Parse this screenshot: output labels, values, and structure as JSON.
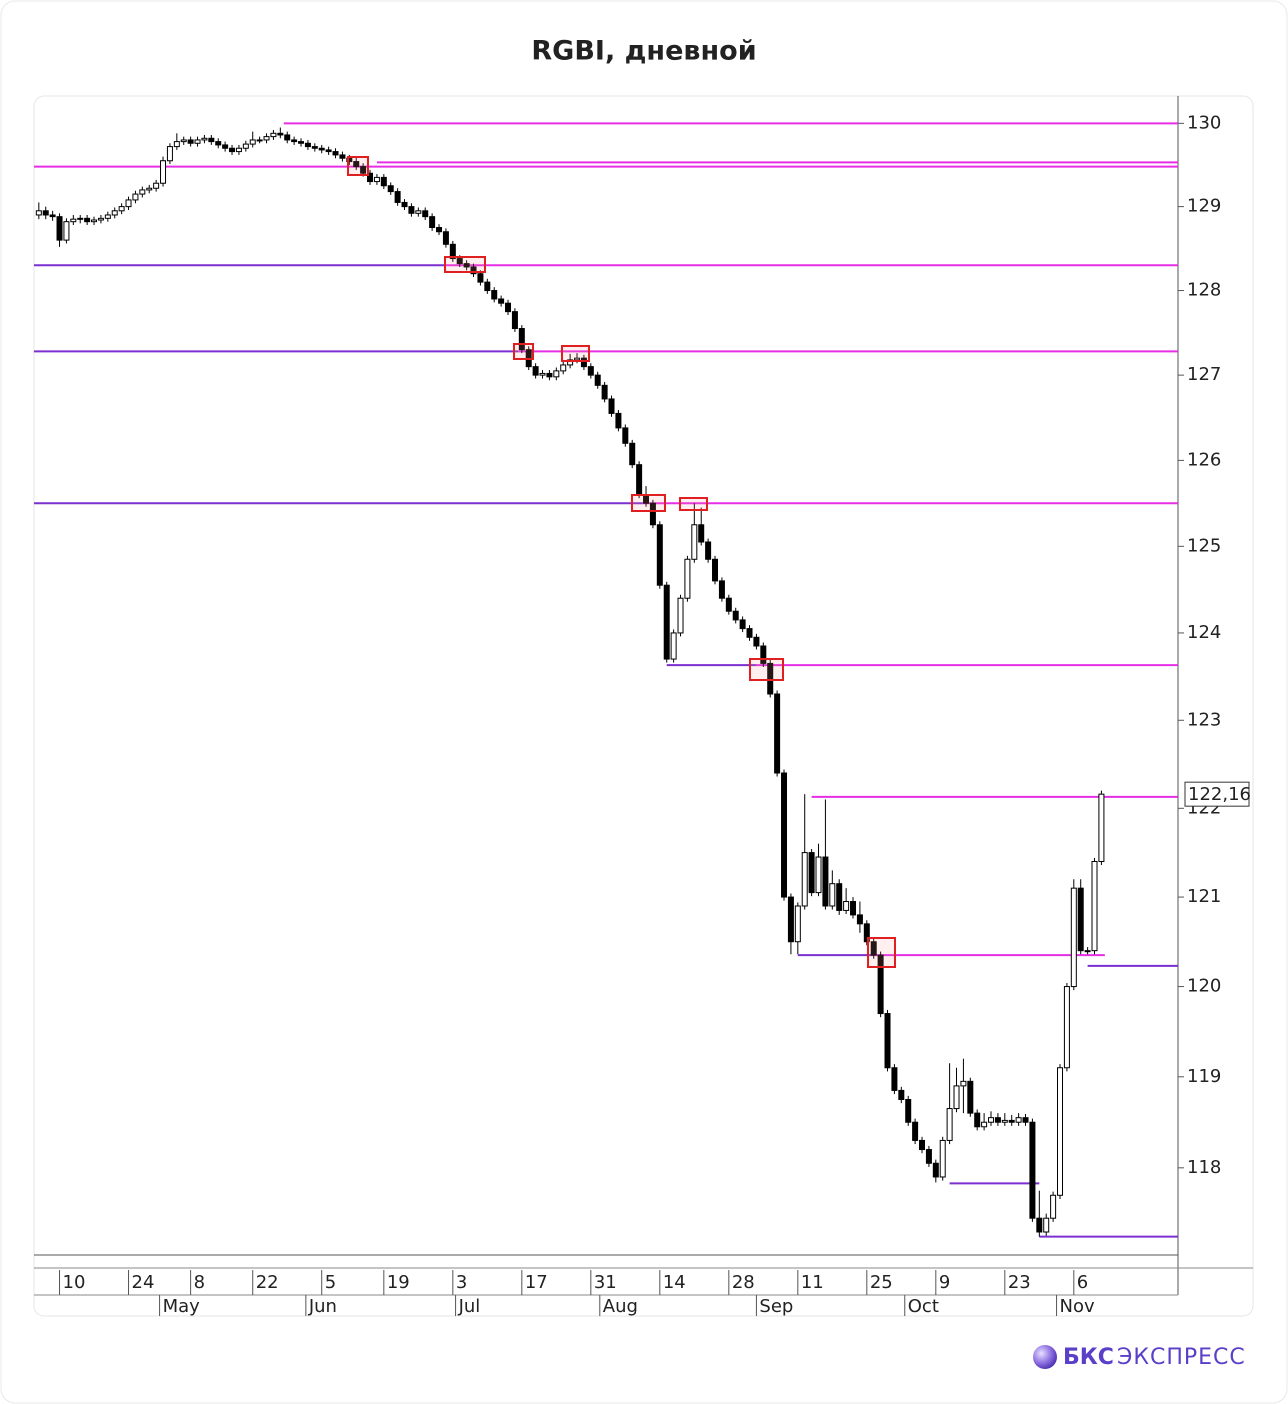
{
  "chart_data": {
    "type": "candlestick",
    "title": "RGBI, дневной",
    "log_scale": true,
    "ylim": [
      117.05,
      130.33
    ],
    "yticks": [
      118,
      119,
      120,
      121,
      122,
      123,
      124,
      125,
      126,
      127,
      128,
      129,
      130
    ],
    "xlim": [
      -0.7,
      165.1
    ],
    "xticks": [
      {
        "value": 3,
        "label": "10"
      },
      {
        "value": 13,
        "label": "24"
      },
      {
        "value": 22,
        "label": "8"
      },
      {
        "value": 31,
        "label": "22"
      },
      {
        "value": 41,
        "label": "5"
      },
      {
        "value": 50,
        "label": "19"
      },
      {
        "value": 60,
        "label": "3"
      },
      {
        "value": 70,
        "label": "17"
      },
      {
        "value": 80,
        "label": "31"
      },
      {
        "value": 90,
        "label": "14"
      },
      {
        "value": 100,
        "label": "28"
      },
      {
        "value": 110,
        "label": "11"
      },
      {
        "value": 120,
        "label": "25"
      },
      {
        "value": 130,
        "label": "9"
      },
      {
        "value": 140,
        "label": "23"
      },
      {
        "value": 150,
        "label": "6"
      }
    ],
    "month_ticks": [
      {
        "value": 17.5,
        "label": "May"
      },
      {
        "value": 38.7,
        "label": "Jun"
      },
      {
        "value": 60.4,
        "label": "Jul"
      },
      {
        "value": 81.3,
        "label": "Aug"
      },
      {
        "value": 104,
        "label": "Sep"
      },
      {
        "value": 125.5,
        "label": "Oct"
      },
      {
        "value": 147.5,
        "label": "Nov"
      }
    ],
    "up_color": "#ffffff",
    "down_color": "#000000",
    "open": [
      128.9,
      128.95,
      128.9,
      128.88,
      128.6,
      128.82,
      128.85,
      128.86,
      128.82,
      128.84,
      128.86,
      128.9,
      128.95,
      129.0,
      129.08,
      129.15,
      129.2,
      129.22,
      129.28,
      129.55,
      129.72,
      129.78,
      129.8,
      129.76,
      129.8,
      129.82,
      129.78,
      129.74,
      129.7,
      129.66,
      129.7,
      129.75,
      129.8,
      129.8,
      129.84,
      129.88,
      129.86,
      129.8,
      129.78,
      129.76,
      129.72,
      129.7,
      129.68,
      129.66,
      129.62,
      129.58,
      129.54,
      129.48,
      129.4,
      129.3,
      129.35,
      129.25,
      129.18,
      129.05,
      129.0,
      128.92,
      128.95,
      128.88,
      128.75,
      128.7,
      128.55,
      128.38,
      128.32,
      128.28,
      128.2,
      128.1,
      128.0,
      127.9,
      127.85,
      127.75,
      127.55,
      127.3,
      127.1,
      127.0,
      127.02,
      126.98,
      127.05,
      127.12,
      127.18,
      127.2,
      127.1,
      127.0,
      126.88,
      126.72,
      126.55,
      126.38,
      126.2,
      125.95,
      125.6,
      125.5,
      125.25,
      124.55,
      123.7,
      124.0,
      124.4,
      124.85,
      125.25,
      125.05,
      124.85,
      124.6,
      124.4,
      124.25,
      124.15,
      124.05,
      123.95,
      123.85,
      123.65,
      123.3,
      122.4,
      121.0,
      120.5,
      120.9,
      121.5,
      121.05,
      121.45,
      120.9,
      121.15,
      120.85,
      120.95,
      120.8,
      120.7,
      120.5,
      120.35,
      119.7,
      119.1,
      118.85,
      118.75,
      118.5,
      118.3,
      118.2,
      118.05,
      117.9,
      118.3,
      118.65,
      118.9,
      118.95,
      118.6,
      118.45,
      118.5,
      118.55,
      118.5,
      118.52,
      118.5,
      118.55,
      118.5,
      117.45,
      117.3,
      117.45,
      117.7,
      119.1,
      120.0,
      121.1,
      120.4,
      120.4,
      121.4
    ],
    "high": [
      129.05,
      129.0,
      128.95,
      128.92,
      128.86,
      128.9,
      128.9,
      128.9,
      128.88,
      128.9,
      128.94,
      128.99,
      129.04,
      129.12,
      129.19,
      129.24,
      129.26,
      129.32,
      129.6,
      129.76,
      129.88,
      129.84,
      129.84,
      129.84,
      129.86,
      129.86,
      129.82,
      129.78,
      129.74,
      129.74,
      129.79,
      129.9,
      129.84,
      129.88,
      129.92,
      129.95,
      129.9,
      129.84,
      129.82,
      129.8,
      129.76,
      129.74,
      129.72,
      129.7,
      129.66,
      129.62,
      129.6,
      129.52,
      129.44,
      129.39,
      129.39,
      129.29,
      129.22,
      129.09,
      129.04,
      128.99,
      128.99,
      128.92,
      128.79,
      128.74,
      128.59,
      128.42,
      128.36,
      128.32,
      128.24,
      128.14,
      128.04,
      127.94,
      127.89,
      127.79,
      127.59,
      127.34,
      127.14,
      127.06,
      127.06,
      127.09,
      127.16,
      127.25,
      127.26,
      127.24,
      127.14,
      127.04,
      126.92,
      126.76,
      126.59,
      126.42,
      126.24,
      125.99,
      125.7,
      125.54,
      125.29,
      124.59,
      124.04,
      124.44,
      124.89,
      125.5,
      125.45,
      125.09,
      124.89,
      124.64,
      124.44,
      124.29,
      124.19,
      124.09,
      123.99,
      123.89,
      123.69,
      123.34,
      122.44,
      121.04,
      120.94,
      122.16,
      121.54,
      121.6,
      122.1,
      121.3,
      121.2,
      121.1,
      121.0,
      120.95,
      120.74,
      120.54,
      120.39,
      119.74,
      119.14,
      118.89,
      118.79,
      118.54,
      118.34,
      118.24,
      118.09,
      118.34,
      119.15,
      119.1,
      119.2,
      118.99,
      118.64,
      118.6,
      118.62,
      118.6,
      118.6,
      118.58,
      118.6,
      118.59,
      118.54,
      117.75,
      117.5,
      117.74,
      119.14,
      120.04,
      121.2,
      121.2,
      120.44,
      121.44,
      122.2
    ],
    "low": [
      128.85,
      128.85,
      128.83,
      128.52,
      128.56,
      128.78,
      128.8,
      128.78,
      128.78,
      128.8,
      128.82,
      128.86,
      128.91,
      128.96,
      129.04,
      129.11,
      129.16,
      129.18,
      129.24,
      129.51,
      129.68,
      129.74,
      129.72,
      129.72,
      129.76,
      129.74,
      129.7,
      129.66,
      129.62,
      129.62,
      129.66,
      129.71,
      129.76,
      129.76,
      129.8,
      129.82,
      129.76,
      129.74,
      129.72,
      129.68,
      129.66,
      129.64,
      129.62,
      129.58,
      129.54,
      129.5,
      129.44,
      129.36,
      129.26,
      129.26,
      129.21,
      129.14,
      129.01,
      128.96,
      128.88,
      128.88,
      128.84,
      128.71,
      128.66,
      128.51,
      128.34,
      128.28,
      128.24,
      128.16,
      128.06,
      127.96,
      127.86,
      127.81,
      127.71,
      127.51,
      127.26,
      127.06,
      126.96,
      126.96,
      126.94,
      126.94,
      127.01,
      127.08,
      127.14,
      127.06,
      126.96,
      126.84,
      126.68,
      126.51,
      126.34,
      126.16,
      125.91,
      125.56,
      125.46,
      125.21,
      124.51,
      123.66,
      123.66,
      123.96,
      124.36,
      124.81,
      125.01,
      124.81,
      124.56,
      124.36,
      124.21,
      124.11,
      124.01,
      123.91,
      123.81,
      123.61,
      123.26,
      122.36,
      120.96,
      120.36,
      120.36,
      120.86,
      121.01,
      121.01,
      120.86,
      120.86,
      120.8,
      120.81,
      120.76,
      120.6,
      120.46,
      120.31,
      119.66,
      119.06,
      118.81,
      118.71,
      118.46,
      118.26,
      118.16,
      118.01,
      117.84,
      117.86,
      118.26,
      118.61,
      118.6,
      118.56,
      118.41,
      118.41,
      118.46,
      118.46,
      118.46,
      118.46,
      118.46,
      118.46,
      117.41,
      117.25,
      117.26,
      117.41,
      117.66,
      119.06,
      119.96,
      120.36,
      120.36,
      120.36,
      121.36
    ],
    "close": [
      128.95,
      128.9,
      128.88,
      128.6,
      128.82,
      128.85,
      128.86,
      128.82,
      128.84,
      128.86,
      128.9,
      128.95,
      129.0,
      129.08,
      129.15,
      129.2,
      129.22,
      129.28,
      129.55,
      129.72,
      129.78,
      129.8,
      129.76,
      129.8,
      129.82,
      129.78,
      129.74,
      129.7,
      129.66,
      129.7,
      129.75,
      129.8,
      129.8,
      129.84,
      129.88,
      129.86,
      129.8,
      129.78,
      129.76,
      129.72,
      129.7,
      129.68,
      129.66,
      129.62,
      129.58,
      129.54,
      129.48,
      129.4,
      129.3,
      129.35,
      129.25,
      129.18,
      129.05,
      129.0,
      128.92,
      128.95,
      128.88,
      128.75,
      128.7,
      128.55,
      128.38,
      128.32,
      128.28,
      128.2,
      128.1,
      128.0,
      127.9,
      127.85,
      127.75,
      127.55,
      127.3,
      127.1,
      127.0,
      127.02,
      126.98,
      127.05,
      127.12,
      127.18,
      127.2,
      127.1,
      127.0,
      126.88,
      126.72,
      126.55,
      126.38,
      126.2,
      125.95,
      125.6,
      125.5,
      125.25,
      124.55,
      123.7,
      124.0,
      124.4,
      124.85,
      125.25,
      125.05,
      124.85,
      124.6,
      124.4,
      124.25,
      124.15,
      124.05,
      123.95,
      123.85,
      123.65,
      123.3,
      122.4,
      121.0,
      120.5,
      120.9,
      121.5,
      121.05,
      121.45,
      120.9,
      121.15,
      120.85,
      120.95,
      120.8,
      120.7,
      120.5,
      120.35,
      119.7,
      119.1,
      118.85,
      118.75,
      118.5,
      118.3,
      118.2,
      118.05,
      117.9,
      118.3,
      118.65,
      118.9,
      118.95,
      118.6,
      118.45,
      118.5,
      118.55,
      118.5,
      118.52,
      118.5,
      118.55,
      118.5,
      117.45,
      117.3,
      117.45,
      117.7,
      119.1,
      120.0,
      121.1,
      120.4,
      120.4,
      121.4,
      122.16
    ],
    "levels": [
      {
        "value": 130.0,
        "from": 35.5,
        "to": 165.1,
        "color": "#e62ee6"
      },
      {
        "value": 129.53,
        "from": 49,
        "to": 165.1,
        "color": "#e62ee6"
      },
      {
        "value": 129.48,
        "from": -0.7,
        "to": 165.1,
        "color": "#e62ee6"
      },
      {
        "value": 128.3,
        "from": -0.7,
        "to": 59,
        "color": "#7b2fd0"
      },
      {
        "value": 128.3,
        "from": 59,
        "to": 165.1,
        "color": "#e62ee6"
      },
      {
        "value": 127.28,
        "from": -0.7,
        "to": 69.5,
        "color": "#7b2fd0"
      },
      {
        "value": 127.28,
        "from": 69.5,
        "to": 165.1,
        "color": "#e62ee6"
      },
      {
        "value": 125.5,
        "from": -0.7,
        "to": 87.5,
        "color": "#7b2fd0"
      },
      {
        "value": 125.5,
        "from": 87.5,
        "to": 165.1,
        "color": "#e62ee6"
      },
      {
        "value": 123.63,
        "from": 91,
        "to": 104,
        "color": "#7b2fd0"
      },
      {
        "value": 123.63,
        "from": 104,
        "to": 165.1,
        "color": "#e62ee6"
      },
      {
        "value": 122.13,
        "from": 112,
        "to": 165.1,
        "color": "#e62ee6"
      },
      {
        "value": 120.35,
        "from": 110,
        "to": 121,
        "color": "#7b2fd0"
      },
      {
        "value": 120.35,
        "from": 121,
        "to": 154.5,
        "color": "#e62ee6"
      },
      {
        "value": 120.23,
        "from": 152,
        "to": 165.1,
        "color": "#7b2fd0"
      },
      {
        "value": 117.83,
        "from": 132,
        "to": 145,
        "color": "#7b2fd0"
      },
      {
        "value": 117.25,
        "from": 145,
        "to": 165.1,
        "color": "#7b2fd0"
      }
    ],
    "last_price": {
      "value": 122.16,
      "label": "122,16"
    }
  },
  "footer": {
    "brand": "БКС",
    "product": "ЭКСПРЕСС"
  }
}
